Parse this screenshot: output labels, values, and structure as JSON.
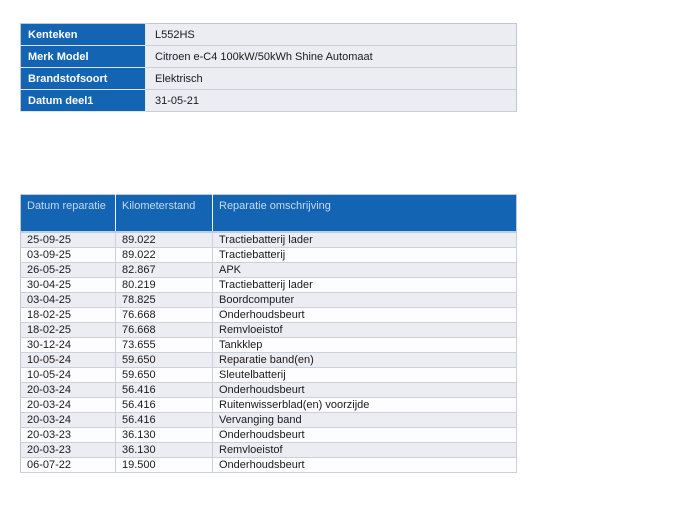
{
  "colors": {
    "accent_blue": "#1464b4",
    "header_text": "#c6d9ec",
    "stripe": "#ebedf3",
    "page_background": "#ffffff"
  },
  "vehicle_info": {
    "rows": [
      {
        "label": "Kenteken",
        "value": "L552HS"
      },
      {
        "label": "Merk Model",
        "value": "Citroen e-C4 100kW/50kWh Shine Automaat"
      },
      {
        "label": "Brandstofsoort",
        "value": "Elektrisch"
      },
      {
        "label": "Datum deel1",
        "value": "31-05-21"
      }
    ]
  },
  "repair_history": {
    "columns": [
      "Datum reparatie",
      "Kilometerstand",
      "Reparatie omschrijving"
    ],
    "rows": [
      {
        "datum": "25-09-25",
        "kilometerstand": "89.022",
        "omschrijving": "Tractiebatterij lader"
      },
      {
        "datum": "03-09-25",
        "kilometerstand": "89.022",
        "omschrijving": "Tractiebatterij"
      },
      {
        "datum": "26-05-25",
        "kilometerstand": "82.867",
        "omschrijving": "APK"
      },
      {
        "datum": "30-04-25",
        "kilometerstand": "80.219",
        "omschrijving": "Tractiebatterij lader"
      },
      {
        "datum": "03-04-25",
        "kilometerstand": "78.825",
        "omschrijving": "Boordcomputer"
      },
      {
        "datum": "18-02-25",
        "kilometerstand": "76.668",
        "omschrijving": "Onderhoudsbeurt"
      },
      {
        "datum": "18-02-25",
        "kilometerstand": "76.668",
        "omschrijving": "Remvloeistof"
      },
      {
        "datum": "30-12-24",
        "kilometerstand": "73.655",
        "omschrijving": "Tankklep"
      },
      {
        "datum": "10-05-24",
        "kilometerstand": "59.650",
        "omschrijving": "Reparatie band(en)"
      },
      {
        "datum": "10-05-24",
        "kilometerstand": "59.650",
        "omschrijving": "Sleutelbatterij"
      },
      {
        "datum": "20-03-24",
        "kilometerstand": "56.416",
        "omschrijving": "Onderhoudsbeurt"
      },
      {
        "datum": "20-03-24",
        "kilometerstand": "56.416",
        "omschrijving": "Ruitenwisserblad(en) voorzijde"
      },
      {
        "datum": "20-03-24",
        "kilometerstand": "56.416",
        "omschrijving": "Vervanging band"
      },
      {
        "datum": "20-03-23",
        "kilometerstand": "36.130",
        "omschrijving": "Onderhoudsbeurt"
      },
      {
        "datum": "20-03-23",
        "kilometerstand": "36.130",
        "omschrijving": "Remvloeistof"
      },
      {
        "datum": "06-07-22",
        "kilometerstand": "19.500",
        "omschrijving": "Onderhoudsbeurt"
      }
    ]
  }
}
